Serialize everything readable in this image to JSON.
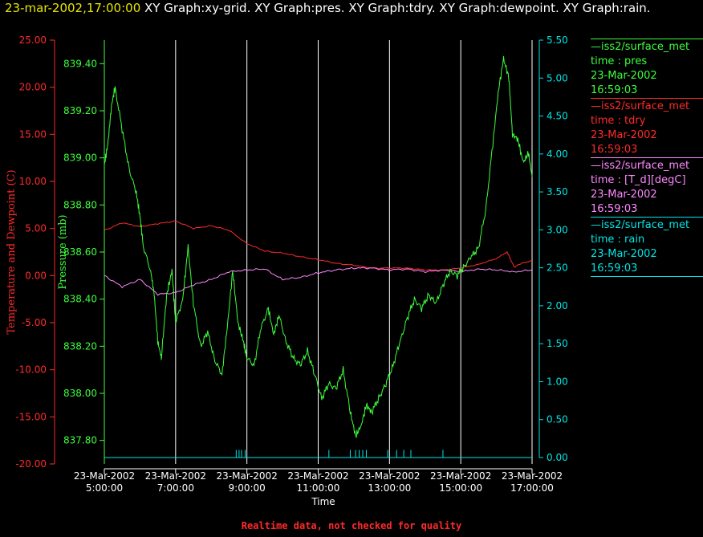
{
  "header": {
    "timestamp": "23-mar-2002,17:00:00",
    "titles": "XY Graph:xy-grid.  XY Graph:pres.  XY Graph:tdry.  XY Graph:dewpoint.  XY Graph:rain."
  },
  "colors": {
    "temp": "#ff2a2a",
    "pres": "#3cff3c",
    "dew": "#ff88ff",
    "rain": "#00e5e5",
    "grid": "#ffffff",
    "yellow": "#e6e600"
  },
  "legend": [
    {
      "line1": "iss2/surface_met",
      "line2": "time : pres",
      "line3": "23-Mar-2002",
      "line4": "16:59:03",
      "color": "#3cff3c"
    },
    {
      "line1": "iss2/surface_met",
      "line2": "time : tdry",
      "line3": "23-Mar-2002",
      "line4": "16:59:03",
      "color": "#ff2a2a"
    },
    {
      "line1": "iss2/surface_met",
      "line2": "time : [T_d][degC]",
      "line3": "23-Mar-2002",
      "line4": "16:59:03",
      "color": "#ff88ff"
    },
    {
      "line1": "iss2/surface_met",
      "line2": "time : rain",
      "line3": "23-Mar-2002",
      "line4": "16:59:03",
      "color": "#00e5e5"
    }
  ],
  "footer": "Realtime data, not checked for quality",
  "chart_data": {
    "type": "line",
    "xlabel": "Time",
    "x_ticks": [
      {
        "date": "23-Mar-2002",
        "time": "5:00:00"
      },
      {
        "date": "23-Mar-2002",
        "time": "7:00:00"
      },
      {
        "date": "23-Mar-2002",
        "time": "9:00:00"
      },
      {
        "date": "23-Mar-2002",
        "time": "11:00:00"
      },
      {
        "date": "23-Mar-2002",
        "time": "13:00:00"
      },
      {
        "date": "23-Mar-2002",
        "time": "15:00:00"
      },
      {
        "date": "23-Mar-2002",
        "time": "17:00:00"
      }
    ],
    "xlim": [
      "5:00",
      "17:00"
    ],
    "y_left": {
      "label": "Temperature and Dewpoint (C)",
      "ylim": [
        -20,
        25
      ],
      "ticks": [
        "25.00",
        "20.00",
        "15.00",
        "10.00",
        "5.00",
        "0.00",
        "-5.00",
        "-10.00",
        "-15.00",
        "-20.00"
      ]
    },
    "y_pressure": {
      "label": "Pressure (mb)",
      "ylim": [
        837.7,
        839.5
      ],
      "ticks": [
        "839.40",
        "839.20",
        "839.00",
        "838.80",
        "838.60",
        "838.40",
        "838.20",
        "838.00",
        "837.80"
      ]
    },
    "y_right": {
      "ylim": [
        0,
        5.5
      ],
      "ticks": [
        "5.50",
        "5.00",
        "4.50",
        "4.00",
        "3.50",
        "3.00",
        "2.50",
        "2.00",
        "1.50",
        "1.00",
        "0.50",
        "0.00"
      ]
    },
    "series": [
      {
        "name": "pres",
        "axis": "pressure",
        "x_hours": [
          5.0,
          5.1,
          5.2,
          5.3,
          5.5,
          5.7,
          5.9,
          6.0,
          6.1,
          6.3,
          6.4,
          6.5,
          6.6,
          6.75,
          6.9,
          7.0,
          7.2,
          7.35,
          7.5,
          7.7,
          7.9,
          8.1,
          8.3,
          8.45,
          8.6,
          8.75,
          8.9,
          9.0,
          9.2,
          9.4,
          9.6,
          9.75,
          9.9,
          10.1,
          10.3,
          10.5,
          10.7,
          10.9,
          11.1,
          11.3,
          11.5,
          11.7,
          11.9,
          12.05,
          12.2,
          12.35,
          12.5,
          12.7,
          12.9,
          13.1,
          13.3,
          13.5,
          13.7,
          13.9,
          14.1,
          14.3,
          14.5,
          14.7,
          14.9,
          15.1,
          15.3,
          15.5,
          15.7,
          15.9,
          16.05,
          16.2,
          16.35,
          16.45,
          16.6,
          16.75,
          16.9,
          17.0
        ],
        "values": [
          838.97,
          839.06,
          839.22,
          839.3,
          839.12,
          838.95,
          838.85,
          838.75,
          838.62,
          838.52,
          838.42,
          838.22,
          838.15,
          838.42,
          838.52,
          838.3,
          838.4,
          838.62,
          838.38,
          838.2,
          838.26,
          838.14,
          838.08,
          838.28,
          838.52,
          838.3,
          838.22,
          838.15,
          838.12,
          838.28,
          838.36,
          838.25,
          838.33,
          838.22,
          838.15,
          838.12,
          838.18,
          838.08,
          837.98,
          838.04,
          838.02,
          838.1,
          837.92,
          837.82,
          837.86,
          837.95,
          837.92,
          837.98,
          838.04,
          838.12,
          838.22,
          838.32,
          838.4,
          838.36,
          838.42,
          838.38,
          838.46,
          838.52,
          838.5,
          838.54,
          838.58,
          838.62,
          838.78,
          839.06,
          839.28,
          839.42,
          839.34,
          839.1,
          839.08,
          838.98,
          839.02,
          838.92
        ]
      },
      {
        "name": "tdry",
        "axis": "temp",
        "x_hours": [
          5.0,
          5.5,
          6.0,
          6.5,
          7.0,
          7.5,
          8.0,
          8.5,
          9.0,
          9.5,
          10.0,
          10.5,
          11.0,
          11.5,
          12.0,
          12.5,
          13.0,
          13.5,
          14.0,
          14.5,
          15.0,
          15.5,
          16.0,
          16.3,
          16.5,
          16.7,
          17.0
        ],
        "values": [
          4.8,
          5.6,
          5.2,
          5.5,
          5.8,
          5.0,
          5.3,
          4.8,
          3.4,
          2.6,
          2.4,
          2.0,
          1.7,
          1.3,
          1.1,
          0.8,
          0.8,
          0.8,
          0.6,
          0.6,
          0.8,
          1.2,
          1.8,
          2.5,
          0.9,
          1.3,
          1.6
        ]
      },
      {
        "name": "dewpoint",
        "axis": "temp",
        "x_hours": [
          5.0,
          5.5,
          6.0,
          6.5,
          7.0,
          7.5,
          8.0,
          8.5,
          9.0,
          9.5,
          10.0,
          10.5,
          11.0,
          11.5,
          12.0,
          12.5,
          13.0,
          13.5,
          14.0,
          14.5,
          15.0,
          15.5,
          16.0,
          16.5,
          17.0
        ],
        "values": [
          0.0,
          -1.2,
          -0.4,
          -2.0,
          -1.8,
          -1.0,
          -0.4,
          0.4,
          0.6,
          0.7,
          -0.4,
          -0.2,
          0.3,
          0.6,
          0.8,
          0.8,
          0.6,
          0.7,
          0.4,
          0.6,
          0.4,
          0.7,
          0.6,
          0.4,
          0.6
        ]
      },
      {
        "name": "rain",
        "axis": "right",
        "baseline": 0.0,
        "spike_hours": [
          8.7,
          8.78,
          8.85,
          8.95,
          11.3,
          11.9,
          12.05,
          12.15,
          12.25,
          12.35,
          12.95,
          13.2,
          13.4,
          13.6,
          14.5
        ],
        "spike_values": [
          0.1,
          0.1,
          0.1,
          0.1,
          0.1,
          0.1,
          0.1,
          0.1,
          0.1,
          0.1,
          0.1,
          0.1,
          0.1,
          0.1,
          0.1
        ]
      }
    ]
  }
}
